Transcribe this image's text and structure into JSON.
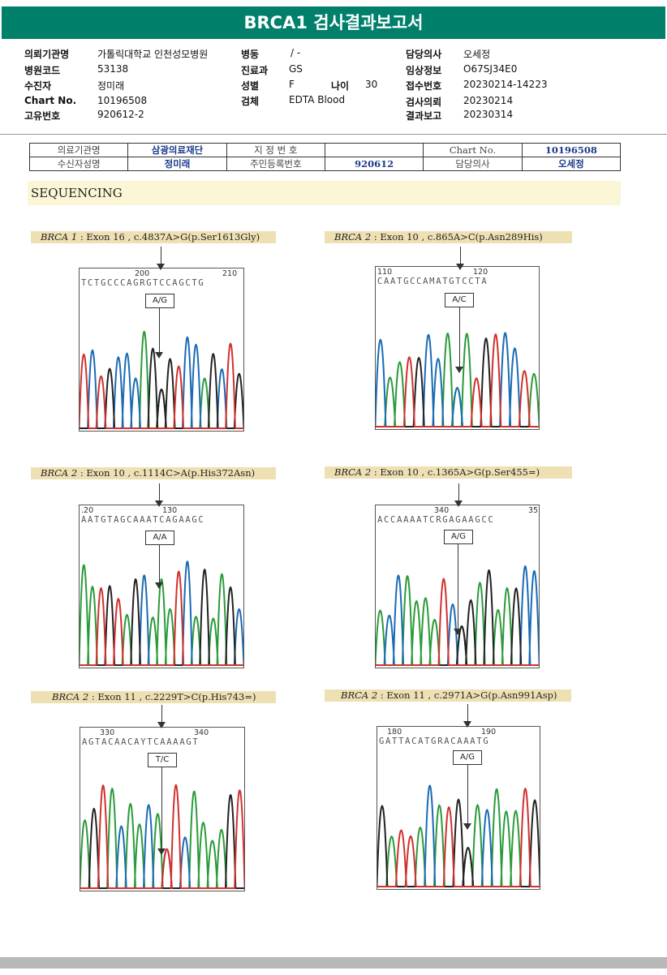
{
  "report": {
    "title": "BRCA1 검사결과보고서"
  },
  "header": {
    "institution_label": "의뢰기관명",
    "institution_value": "가톨릭대학교 인천성모병원",
    "hospital_code_label": "병원코드",
    "hospital_code_value": "53138",
    "patient_label": "수진자",
    "patient_value": "정미래",
    "chart_label": "Chart No.",
    "chart_value": "10196508",
    "unique_label": "고유번호",
    "unique_value": "920612-2",
    "ward_label": "병동",
    "ward_value": "/ -",
    "dept_label": "진료과",
    "dept_value": "GS",
    "sex_label": "성별",
    "sex_value": "F",
    "age_label": "나이",
    "age_value": "30",
    "specimen_label": "검체",
    "specimen_value": "EDTA Blood",
    "doctor_label": "담당의사",
    "doctor_value": "오세정",
    "clinical_label": "임상정보",
    "clinical_value": "O67SJ34E0",
    "receipt_label": "접수번호",
    "receipt_value": "20230214-14223",
    "request_label": "검사의뢰",
    "request_value": "20230214",
    "result_label": "결과보고",
    "result_value": "20230314"
  },
  "info_table": {
    "r1c1": "의료기관명",
    "r1c2": "삼광의료재단",
    "r1c3": "지 정 번 호",
    "r1c4": "",
    "r1c5": "Chart No.",
    "r1c6": "10196508",
    "r2c1": "수신자성명",
    "r2c2": "정미래",
    "r2c3": "주민등록번호",
    "r2c4": "920612",
    "r2c5": "담당의사",
    "r2c6": "오세정"
  },
  "section": {
    "title": "SEQUENCING"
  },
  "panels": [
    {
      "gene": "BRCA 1",
      "variant": " : Exon 16 , c.4837A>G(p.Ser1613Gly)",
      "pos_left": "200",
      "pos_right": "210",
      "sequence": "TCTGCCCAGRGTCCAGCTG",
      "call": "A/G"
    },
    {
      "gene": "BRCA 2",
      "variant": " : Exon 10 , c.865A>C(p.Asn289His)",
      "pos_left": "110",
      "pos_right": "120",
      "sequence": "CAATGCCAMATGTCCTA",
      "call": "A/C"
    },
    {
      "gene": "BRCA 2",
      "variant": " : Exon 10 , c.1114C>A(p.His372Asn)",
      "pos_left": ".20",
      "pos_right": "130",
      "sequence": "AATGTAGCAAATCAGAAGC",
      "call": "A/A"
    },
    {
      "gene": "BRCA 2",
      "variant": " : Exon 10 , c.1365A>G(p.Ser455=)",
      "pos_left": "340",
      "pos_right": "35",
      "sequence": "ACCAAAATCRGAGAAGCC",
      "call": "A/G"
    },
    {
      "gene": "BRCA 2",
      "variant": " : Exon 11 , c.2229T>C(p.His743=)",
      "pos_left": "330",
      "pos_right": "340",
      "sequence": "AGTACAACAYTCAAAAGT",
      "call": "T/C"
    },
    {
      "gene": "BRCA 2",
      "variant": " : Exon 11 , c.2971A>G(p.Asn991Asp)",
      "pos_left": "180",
      "pos_right": "190",
      "sequence": "GATTACATGRACAAATG",
      "call": "A/G"
    }
  ],
  "colors": {
    "A": "#2a9b3a",
    "C": "#1a6bb5",
    "G": "#222222",
    "T": "#d0312d",
    "accent": "#00806b"
  }
}
